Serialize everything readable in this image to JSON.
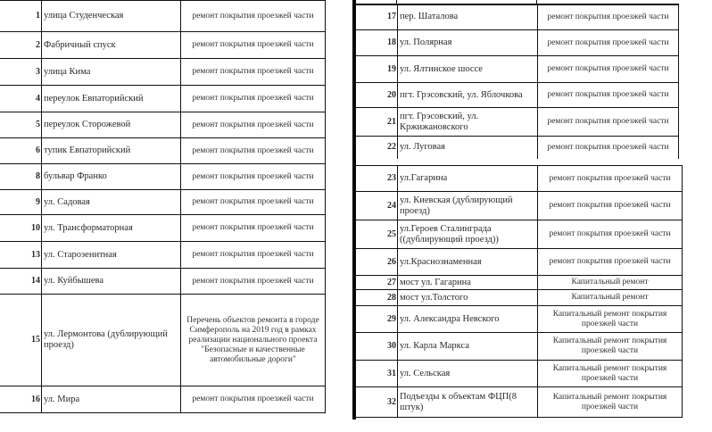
{
  "left_table": {
    "rows": [
      {
        "num": "1",
        "name": "улица Студенческая",
        "desc": "ремонт покрытия проезжей части"
      },
      {
        "num": "2",
        "name": "Фабричный спуск",
        "desc": "ремонт покрытия проезжей части"
      },
      {
        "num": "3",
        "name": "улица Кима",
        "desc": "ремонт покрытия проезжей части"
      },
      {
        "num": "4",
        "name": "переулок Евпаторийский",
        "desc": "ремонт покрытия проезжей части"
      },
      {
        "num": "5",
        "name": "переулок Сторожевой",
        "desc": "ремонт покрытия проезжей части"
      },
      {
        "num": "6",
        "name": "тупик Евпаторийский",
        "desc": "ремонт покрытия проезжей части"
      },
      {
        "num": "8",
        "name": "бульвар Франко",
        "desc": "ремонт покрытия проезжей части"
      },
      {
        "num": "9",
        "name": "ул. Садовая",
        "desc": "ремонт покрытия проезжей части"
      },
      {
        "num": "10",
        "name": "ул. Трансформаторная",
        "desc": "ремонт покрытия проезжей части"
      },
      {
        "num": "13",
        "name": "ул. Старозенитная",
        "desc": "ремонт покрытия проезжей части"
      },
      {
        "num": "14",
        "name": "ул. Куйбышева",
        "desc": "ремонт покрытия проезжей части"
      },
      {
        "num": "15",
        "name": "ул. Лермонтова (дублирующий проезд)",
        "desc": "Перечень объектов ремонта в городе Симферополь на 2019 год в рамках реализации национального проекта \"Безопасные и качественные автомобильные дороги\""
      },
      {
        "num": "16",
        "name": "ул. Мира",
        "desc": "ремонт покрытия проезжей части"
      }
    ]
  },
  "right_table_a": {
    "rows": [
      {
        "num": "17",
        "name": "пер. Шаталова",
        "desc": "ремонт покрытия проезжей части"
      },
      {
        "num": "18",
        "name": "ул. Полярная",
        "desc": "ремонт покрытия проезжей части"
      },
      {
        "num": "19",
        "name": "ул. Ялтинское шоссе",
        "desc": "ремонт покрытия проезжей части"
      },
      {
        "num": "20",
        "name": "пгт. Грэсовский, ул. Яблочкова",
        "desc": "ремонт покрытия проезжей части"
      },
      {
        "num": "21",
        "name": "пгт. Грэсовский, ул. Кржижановского",
        "desc": "ремонт покрытия проезжей части"
      },
      {
        "num": "22",
        "name": "ул. Луговая",
        "desc": "ремонт покрытия проезжей части"
      }
    ]
  },
  "right_table_b": {
    "rows": [
      {
        "num": "23",
        "name": "ул.Гагарина",
        "desc": "ремонт покрытия проезжей части"
      },
      {
        "num": "24",
        "name": "ул. Киевская (дублирующий проезд)",
        "desc": "ремонт покрытия проезжей части"
      },
      {
        "num": "25",
        "name": "ул.Героев Сталинграда ((дублирующий проезд))",
        "desc": "ремонт покрытия проезжей части"
      },
      {
        "num": "26",
        "name": "ул.Краснознаменная",
        "desc": "ремонт покрытия проезжей части"
      },
      {
        "num": "27",
        "name": "мост ул. Гагарина",
        "desc": "Капитальный ремонт"
      },
      {
        "num": "28",
        "name": "мост ул.Толстого",
        "desc": "Капитальный ремонт"
      },
      {
        "num": "29",
        "name": "ул. Александра Невского",
        "desc": "Капитальный ремонт покрытия проезжей части"
      },
      {
        "num": "30",
        "name": "ул. Карла Маркса",
        "desc": "Капитальный ремонт покрытия проезжей части"
      },
      {
        "num": "31",
        "name": "ул. Сельская",
        "desc": "Капитальный ремонт покрытия проезжей части"
      },
      {
        "num": "32",
        "name": "Подъезды к объектам ФЦП(8 штук)",
        "desc": "Капитальный ремонт покрытия проезжей части"
      }
    ]
  }
}
